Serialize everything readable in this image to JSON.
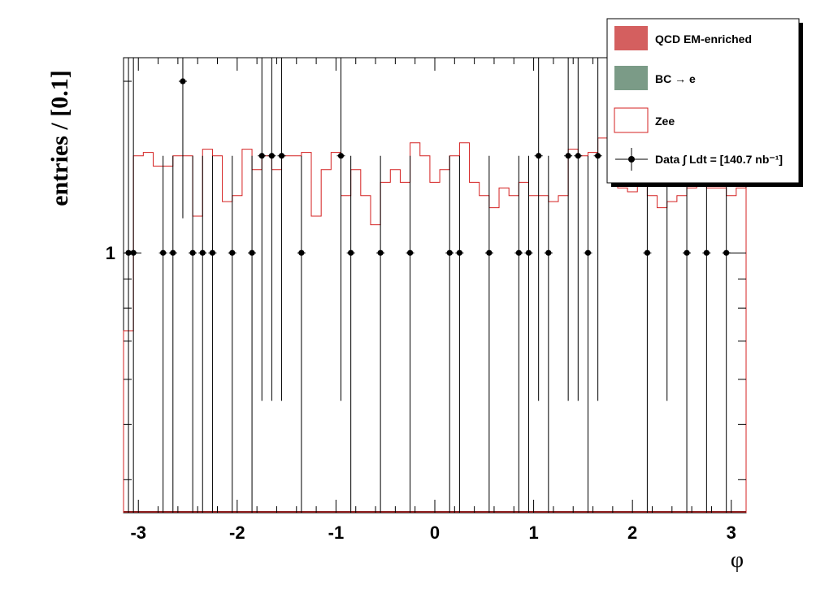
{
  "chart_data": {
    "type": "histogram",
    "ylabel": "entries / [0.1]",
    "xlabel": "φ",
    "xlim": [
      -3.15,
      3.15
    ],
    "ylim": [
      0.35,
      2.2
    ],
    "log_y": true,
    "grid": false,
    "legend_position": "top-right",
    "x_tick_labels": [
      "-3",
      "-2",
      "-1",
      "0",
      "1",
      "2",
      "3"
    ],
    "x_tick_values": [
      -3,
      -2,
      -1,
      0,
      1,
      2,
      3
    ],
    "y_tick_labels": [
      "1"
    ],
    "y_tick_values": [
      1
    ],
    "legend": [
      {
        "label": "QCD EM-enriched",
        "style": "fill",
        "color": "#d45f5f"
      },
      {
        "label": "BC → e",
        "style": "fill",
        "color": "#7b9b87"
      },
      {
        "label": "Zee",
        "style": "outline",
        "color": "#d42020"
      },
      {
        "label": "Data ∫ Ldt = [140.7 nb⁻¹]",
        "style": "marker",
        "color": "#000000"
      }
    ],
    "series": [
      {
        "name": "Zee",
        "bin_edges_start": -3.15,
        "bin_width": 0.1,
        "values": [
          0.73,
          1.48,
          1.5,
          1.42,
          1.42,
          1.48,
          1.48,
          1.16,
          1.52,
          1.48,
          1.23,
          1.26,
          1.52,
          1.4,
          1.48,
          1.4,
          1.48,
          1.48,
          1.5,
          1.16,
          1.4,
          1.5,
          1.26,
          1.4,
          1.26,
          1.12,
          1.33,
          1.4,
          1.33,
          1.56,
          1.48,
          1.33,
          1.4,
          1.48,
          1.56,
          1.33,
          1.26,
          1.2,
          1.3,
          1.26,
          1.33,
          1.26,
          1.26,
          1.23,
          1.26,
          1.52,
          1.48,
          1.5,
          1.59,
          1.4,
          1.3,
          1.28,
          1.33,
          1.26,
          1.2,
          1.23,
          1.26,
          1.3,
          1.33,
          1.3,
          1.3,
          1.26,
          1.3,
          1.26,
          1.33,
          1.48,
          1.52,
          1.52,
          1.56,
          1.33,
          1.33,
          1.3,
          1.26,
          1.3,
          1.3,
          1.23,
          1.3,
          1.3,
          1.3,
          1.26,
          1.3,
          1.4,
          1.33,
          1.48,
          1.44,
          1.33,
          1.26,
          1.44,
          1.48,
          1.4,
          1.3,
          1.26,
          1.33,
          1.48,
          1.44,
          1.5,
          1.26,
          1.33,
          1.3,
          1.26,
          1.33,
          1.4,
          1.36,
          1.48,
          1.4,
          1.33,
          1.36,
          1.4,
          1.3,
          1.4,
          1.3,
          1.4,
          1.33,
          1.38,
          1.4,
          1.44,
          1.3,
          1.36,
          1.4,
          1.36,
          1.26,
          1.36,
          1.4,
          1.36,
          1.3,
          1.26,
          1.3,
          1.36,
          1.4,
          1.36,
          1.3,
          1.33,
          1.26,
          1.3,
          1.3,
          1.26,
          1.4,
          1.33,
          1.3,
          1.26,
          1.3,
          1.33,
          1.26,
          1.3,
          1.26,
          1.3,
          1.26,
          1.3
        ]
      },
      {
        "name": "Data",
        "points": [
          {
            "x": -3.05,
            "y": 1,
            "err_low": 0.35,
            "err_high": 2.2
          },
          {
            "x": -3.1,
            "y": 1,
            "err_low": 0.35,
            "err_high": 2.2
          },
          {
            "x": -2.75,
            "y": 1,
            "err_low": 0.35,
            "err_high": 1.48
          },
          {
            "x": -2.65,
            "y": 1,
            "err_low": 0.35,
            "err_high": 1.48
          },
          {
            "x": -2.55,
            "y": 2.0,
            "err_low": 1.15,
            "err_high": 2.2
          },
          {
            "x": -2.45,
            "y": 1,
            "err_low": 0.35,
            "err_high": 1.48
          },
          {
            "x": -2.35,
            "y": 1,
            "err_low": 0.35,
            "err_high": 1.48
          },
          {
            "x": -2.25,
            "y": 1,
            "err_low": 0.35,
            "err_high": 1.48
          },
          {
            "x": -2.05,
            "y": 1,
            "err_low": 0.35,
            "err_high": 1.48
          },
          {
            "x": -1.85,
            "y": 1,
            "err_low": 0.35,
            "err_high": 1.48
          },
          {
            "x": -1.75,
            "y": 1.48,
            "err_low": 0.55,
            "err_high": 2.2
          },
          {
            "x": -1.65,
            "y": 1.48,
            "err_low": 0.55,
            "err_high": 2.2
          },
          {
            "x": -1.55,
            "y": 1.48,
            "err_low": 0.55,
            "err_high": 2.2
          },
          {
            "x": -1.35,
            "y": 1,
            "err_low": 0.35,
            "err_high": 1.48
          },
          {
            "x": -0.95,
            "y": 1.48,
            "err_low": 0.55,
            "err_high": 2.2
          },
          {
            "x": -0.85,
            "y": 1,
            "err_low": 0.35,
            "err_high": 1.48
          },
          {
            "x": -0.55,
            "y": 1,
            "err_low": 0.35,
            "err_high": 1.48
          },
          {
            "x": -0.25,
            "y": 1,
            "err_low": 0.35,
            "err_high": 1.48
          },
          {
            "x": 0.15,
            "y": 1,
            "err_low": 0.35,
            "err_high": 1.48
          },
          {
            "x": 0.25,
            "y": 1,
            "err_low": 0.35,
            "err_high": 1.48
          },
          {
            "x": 0.55,
            "y": 1,
            "err_low": 0.35,
            "err_high": 1.48
          },
          {
            "x": 0.85,
            "y": 1,
            "err_low": 0.35,
            "err_high": 1.48
          },
          {
            "x": 0.95,
            "y": 1,
            "err_low": 0.35,
            "err_high": 1.48
          },
          {
            "x": 1.05,
            "y": 1.48,
            "err_low": 0.55,
            "err_high": 2.2
          },
          {
            "x": 1.15,
            "y": 1,
            "err_low": 0.35,
            "err_high": 1.48
          },
          {
            "x": 1.35,
            "y": 1.48,
            "err_low": 0.55,
            "err_high": 2.2
          },
          {
            "x": 1.45,
            "y": 1.48,
            "err_low": 0.55,
            "err_high": 2.2
          },
          {
            "x": 1.55,
            "y": 1,
            "err_low": 0.35,
            "err_high": 1.48
          },
          {
            "x": 1.65,
            "y": 1.48,
            "err_low": 0.55,
            "err_high": 2.2
          },
          {
            "x": 2.15,
            "y": 1,
            "err_low": 0.35,
            "err_high": 1.48
          },
          {
            "x": 2.35,
            "y": 1.48,
            "err_low": 0.55,
            "err_high": 2.2
          },
          {
            "x": 2.55,
            "y": 1,
            "err_low": 0.35,
            "err_high": 1.48
          },
          {
            "x": 2.75,
            "y": 1,
            "err_low": 0.35,
            "err_high": 1.48
          },
          {
            "x": 2.95,
            "y": 1,
            "err_low": 0.35,
            "err_high": 1.48
          }
        ]
      }
    ]
  }
}
